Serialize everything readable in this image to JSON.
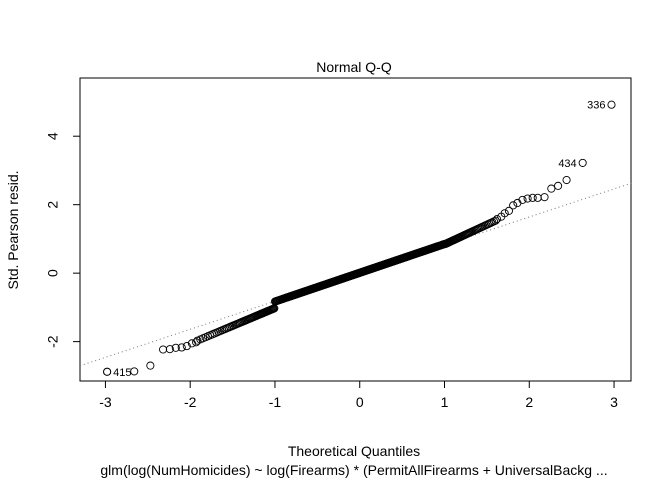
{
  "chart_data": {
    "type": "scatter",
    "title": "Normal Q-Q",
    "xlabel": "Theoretical Quantiles",
    "ylabel": "Std. Pearson resid.",
    "subtitle": "glm(log(NumHomicides) ~ log(Firearms) * (PermitAllFirearms + UniversalBackg ...",
    "xlim": [
      -3.3,
      3.2
    ],
    "ylim": [
      -3.15,
      5.7
    ],
    "x_ticks": [
      -3,
      -2,
      -1,
      0,
      1,
      2,
      3
    ],
    "y_ticks": [
      -2,
      0,
      2,
      4
    ],
    "grid": false,
    "reference_line": {
      "intercept": 0.0,
      "slope": 0.82,
      "style": "dotted"
    },
    "labeled_points": [
      {
        "label": "336",
        "x": 2.97,
        "y": 4.92
      },
      {
        "label": "434",
        "x": 2.63,
        "y": 3.22
      },
      {
        "label": "415",
        "x": -2.98,
        "y": -2.88
      }
    ],
    "n_points": 450,
    "tail_points_low": [
      [
        -2.98,
        -2.88
      ],
      [
        -2.66,
        -2.87
      ],
      [
        -2.47,
        -2.7
      ],
      [
        -2.32,
        -2.23
      ],
      [
        -2.24,
        -2.22
      ],
      [
        -2.17,
        -2.18
      ],
      [
        -2.1,
        -2.17
      ],
      [
        -2.04,
        -2.13
      ],
      [
        -1.98,
        -2.05
      ],
      [
        -1.93,
        -2.02
      ]
    ],
    "tail_points_high": [
      [
        1.62,
        1.58
      ],
      [
        1.67,
        1.65
      ],
      [
        1.71,
        1.75
      ],
      [
        1.76,
        1.82
      ],
      [
        1.81,
        1.98
      ],
      [
        1.86,
        2.05
      ],
      [
        1.92,
        2.14
      ],
      [
        1.98,
        2.18
      ],
      [
        2.04,
        2.2
      ],
      [
        2.1,
        2.2
      ],
      [
        2.18,
        2.22
      ],
      [
        2.26,
        2.47
      ],
      [
        2.34,
        2.55
      ],
      [
        2.44,
        2.72
      ]
    ],
    "colors": {
      "points": "#000000",
      "line": "#777777",
      "background": "#ffffff"
    }
  }
}
